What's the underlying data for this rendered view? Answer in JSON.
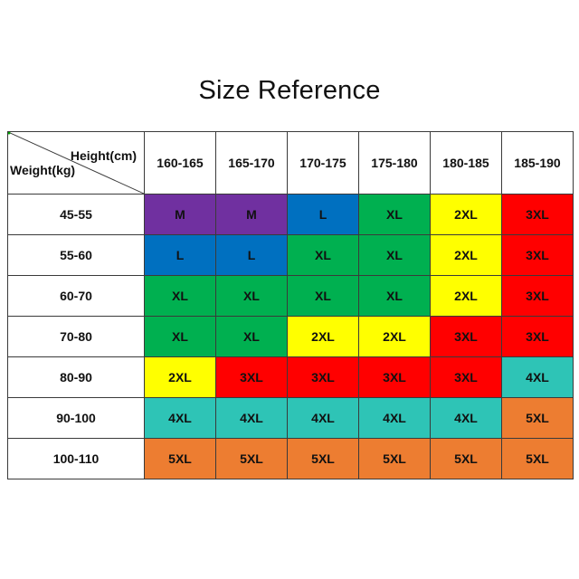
{
  "title": "Size Reference",
  "corner": {
    "height_label": "Height(cm)",
    "weight_label": "Weight(kg)"
  },
  "heights": [
    "160-165",
    "165-170",
    "170-175",
    "175-180",
    "180-185",
    "185-190"
  ],
  "rows": [
    {
      "weight": "45-55",
      "sizes": [
        "M",
        "M",
        "L",
        "XL",
        "2XL",
        "3XL"
      ]
    },
    {
      "weight": "55-60",
      "sizes": [
        "L",
        "L",
        "XL",
        "XL",
        "2XL",
        "3XL"
      ]
    },
    {
      "weight": "60-70",
      "sizes": [
        "XL",
        "XL",
        "XL",
        "XL",
        "2XL",
        "3XL"
      ]
    },
    {
      "weight": "70-80",
      "sizes": [
        "XL",
        "XL",
        "2XL",
        "2XL",
        "3XL",
        "3XL"
      ]
    },
    {
      "weight": "80-90",
      "sizes": [
        "2XL",
        "3XL",
        "3XL",
        "3XL",
        "3XL",
        "4XL"
      ]
    },
    {
      "weight": "90-100",
      "sizes": [
        "4XL",
        "4XL",
        "4XL",
        "4XL",
        "4XL",
        "5XL"
      ]
    },
    {
      "weight": "100-110",
      "sizes": [
        "5XL",
        "5XL",
        "5XL",
        "5XL",
        "5XL",
        "5XL"
      ]
    }
  ],
  "size_colors": {
    "M": "#7030a0",
    "L": "#0070c0",
    "XL": "#00b050",
    "2XL": "#ffff00",
    "3XL": "#ff0000",
    "4XL": "#2ec4b6",
    "5XL": "#ed7d31"
  }
}
